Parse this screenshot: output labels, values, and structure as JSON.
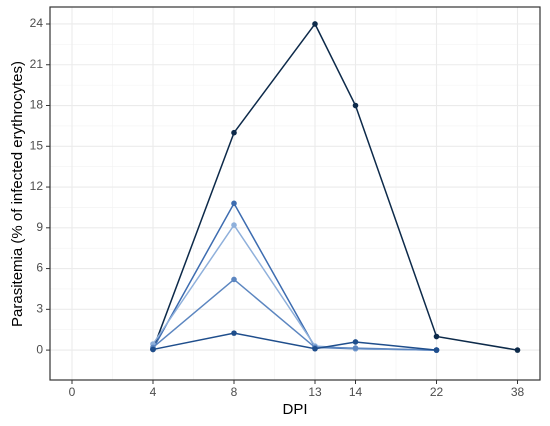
{
  "chart_data": {
    "type": "line",
    "x_label": "DPI",
    "y_label": "Parasitemia (% of infected erythrocytes)",
    "categories": [
      "0",
      "4",
      "8",
      "13",
      "14",
      "22",
      "38"
    ],
    "series": [
      {
        "color": "#0d2a4a",
        "values": [
          null,
          0.05,
          16,
          24,
          18,
          1,
          0
        ]
      },
      {
        "color": "#3d6cb0",
        "values": [
          null,
          0.1,
          10.8,
          0.2,
          0.1,
          0,
          null
        ]
      },
      {
        "color": "#8fb0db",
        "values": [
          null,
          0.45,
          9.2,
          0.3,
          0.1,
          0,
          null
        ]
      },
      {
        "color": "#5c86c0",
        "values": [
          null,
          0.2,
          5.2,
          0.2,
          0.15,
          0,
          null
        ]
      },
      {
        "color": "#1f4e8c",
        "values": [
          null,
          0.05,
          1.25,
          0.1,
          0.6,
          0,
          null
        ]
      }
    ],
    "ylim": [
      -2.2,
      25.25
    ],
    "yticks": [
      0,
      3,
      6,
      9,
      12,
      15,
      18,
      21,
      24
    ],
    "grid": true
  }
}
